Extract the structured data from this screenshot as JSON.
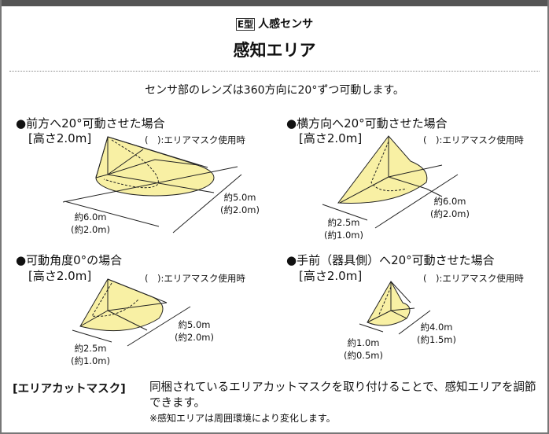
{
  "header": {
    "type_badge": "E型",
    "type_label": "人感センサ",
    "title": "感知エリア"
  },
  "subtitle": "センサ部のレンズは360方向に20°ずつ可動します。",
  "colors": {
    "area_fill": "#f8f0a4",
    "top_bar": "#555555"
  },
  "panels": [
    {
      "heading": "●前方へ20°可動させた場合",
      "height": "[高さ2.0m]",
      "mask_note": "(　):エリアマスク使用時",
      "dims": [
        [
          "約6.0m",
          "(約2.0m)"
        ],
        [
          "約5.0m",
          "(約2.0m)"
        ]
      ]
    },
    {
      "heading": "●横方向へ20°可動させた場合",
      "height": "[高さ2.0m]",
      "mask_note": "(　):エリアマスク使用時",
      "dims": [
        [
          "約2.5m",
          "(約1.0m)"
        ],
        [
          "約6.0m",
          "(約2.0m)"
        ]
      ]
    },
    {
      "heading": "●可動角度0°の場合",
      "height": "[高さ2.0m]",
      "mask_note": "(　):エリアマスク使用時",
      "dims": [
        [
          "約2.5m",
          "(約1.0m)"
        ],
        [
          "約5.0m",
          "(約2.0m)"
        ]
      ]
    },
    {
      "heading": "●手前（器具側）へ20°可動させた場合",
      "height": "[高さ2.0m]",
      "mask_note": "(　):エリアマスク使用時",
      "dims": [
        [
          "約1.0m",
          "(約0.5m)"
        ],
        [
          "約4.0m",
          "(約1.5m)"
        ]
      ]
    }
  ],
  "note": {
    "label": "[エリアカットマスク]",
    "body": "同梱されているエリアカットマスクを取り付けることで、感知エリアを調節できます。",
    "small": "※感知エリアは周囲環境により変化します。"
  }
}
